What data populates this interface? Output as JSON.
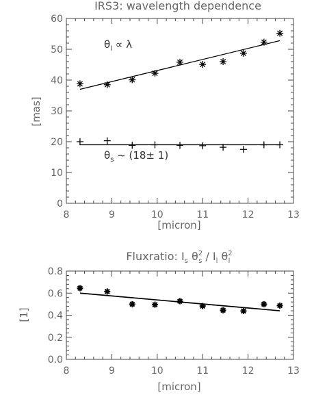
{
  "chart_data": [
    {
      "type": "scatter",
      "title": "IRS3: wavelength dependence",
      "xlabel": "[micron]",
      "ylabel": "[mas]",
      "xlim": [
        8,
        13
      ],
      "ylim": [
        0,
        60
      ],
      "xticks": [
        "8",
        "9",
        "10",
        "11",
        "12",
        "13"
      ],
      "yticks": [
        "0",
        "10",
        "20",
        "30",
        "40",
        "50",
        "60"
      ],
      "series": [
        {
          "marker": "asterisk",
          "x": [
            8.3,
            8.9,
            9.45,
            9.95,
            10.5,
            11.0,
            11.45,
            11.9,
            12.35,
            12.7
          ],
          "y": [
            38.8,
            38.5,
            40.1,
            42.2,
            45.8,
            45.1,
            46.0,
            48.7,
            52.3,
            55.2
          ],
          "fit": {
            "x": [
              8.3,
              12.7
            ],
            "y": [
              37.0,
              52.8
            ]
          },
          "annotation": {
            "greek": "θ",
            "sub": "l",
            "tail": " ∝ λ"
          }
        },
        {
          "marker": "plus",
          "x": [
            8.3,
            8.9,
            9.45,
            9.95,
            10.5,
            11.0,
            11.45,
            11.9,
            12.35,
            12.7
          ],
          "y": [
            20.0,
            20.3,
            18.8,
            19.0,
            18.8,
            18.7,
            18.2,
            17.5,
            19.0,
            19.0
          ],
          "fit": {
            "x": [
              8.3,
              12.7
            ],
            "y": [
              19.0,
              19.0
            ]
          },
          "annotation": {
            "greek": "θ",
            "sub": "s",
            "tail": " ~ (18± 1)"
          }
        }
      ]
    },
    {
      "type": "scatter",
      "title": {
        "a": "Fluxratio: I",
        "a_sub": "s",
        "b": " θ",
        "b_sub": "s",
        "b_sup": "2",
        "c": " / I",
        "c_sub": "l",
        "d": " θ",
        "d_sub": "l",
        "d_sup": "2"
      },
      "xlabel": "[micron]",
      "ylabel": "[1]",
      "xlim": [
        8,
        13
      ],
      "ylim": [
        0,
        0.8
      ],
      "xticks": [
        "8",
        "9",
        "10",
        "11",
        "12",
        "13"
      ],
      "yticks": [
        "0.0",
        "0.2",
        "0.4",
        "0.6",
        "0.8"
      ],
      "series": [
        {
          "marker": "asterisk",
          "x": [
            8.3,
            8.9,
            9.45,
            9.95,
            10.5,
            11.0,
            11.45,
            11.9,
            12.35,
            12.7
          ],
          "y": [
            0.645,
            0.615,
            0.5,
            0.495,
            0.527,
            0.483,
            0.445,
            0.438,
            0.5,
            0.487
          ],
          "fit": {
            "x": [
              8.3,
              12.7
            ],
            "y": [
              0.6,
              0.44
            ]
          }
        }
      ]
    }
  ]
}
